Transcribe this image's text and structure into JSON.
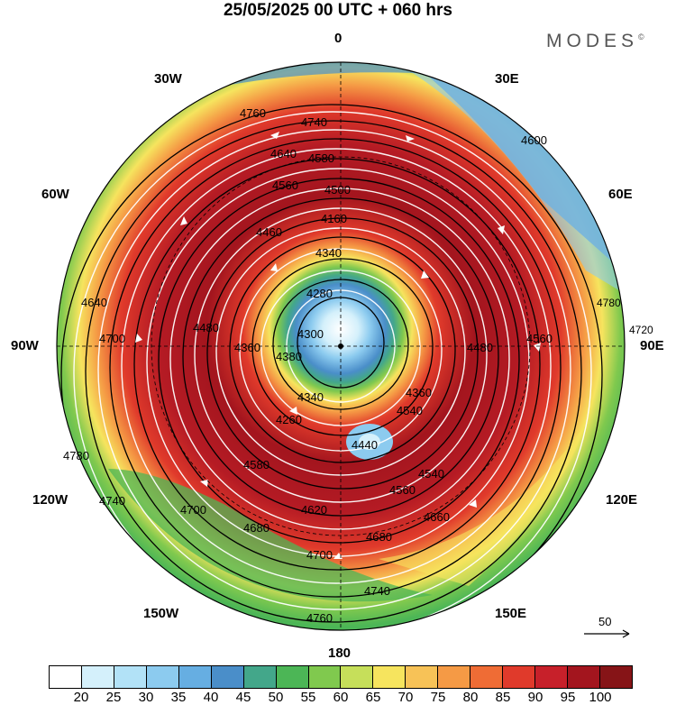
{
  "header": {
    "title": "25/05/2025  00 UTC  + 060 hrs",
    "brand": "MODES",
    "brand_mark": "©"
  },
  "longitude_labels": {
    "top": "0",
    "bottom": "180",
    "left": "90W",
    "right": "90E",
    "upper_left_30": "30W",
    "upper_right_30": "30E",
    "upper_left_60": "60W",
    "upper_right_60": "60E",
    "lower_left_120": "120W",
    "lower_right_120": "120E",
    "lower_left_150": "150W",
    "lower_right_150": "150E"
  },
  "contour_labels": [
    "4760",
    "4740",
    "4600",
    "4640",
    "4580",
    "4560",
    "4500",
    "4160",
    "4460",
    "4340",
    "4280",
    "4360",
    "4720",
    "4780",
    "4700",
    "4640",
    "4560",
    "4480",
    "4380",
    "4300",
    "4260",
    "4440",
    "4340",
    "4540",
    "4560",
    "4620",
    "4660",
    "4680",
    "4700",
    "4740",
    "4760",
    "4780",
    "4680",
    "4700",
    "4740",
    "4480",
    "4580",
    "4540",
    "4360"
  ],
  "colorbar": {
    "ticks": [
      "20",
      "25",
      "30",
      "35",
      "40",
      "45",
      "50",
      "55",
      "60",
      "65",
      "70",
      "75",
      "80",
      "85",
      "90",
      "95",
      "100"
    ],
    "colors": [
      "#ffffff",
      "#d4f0fb",
      "#b2e2f7",
      "#8ccbef",
      "#66aee2",
      "#4a8ec9",
      "#43a78a",
      "#4cb656",
      "#80c94e",
      "#c6df5a",
      "#f6e45e",
      "#f7c257",
      "#f59a45",
      "#ef6c35",
      "#e03a2b",
      "#c7202a",
      "#a3151e",
      "#861417"
    ]
  },
  "vector_reference": {
    "label": "50"
  }
}
